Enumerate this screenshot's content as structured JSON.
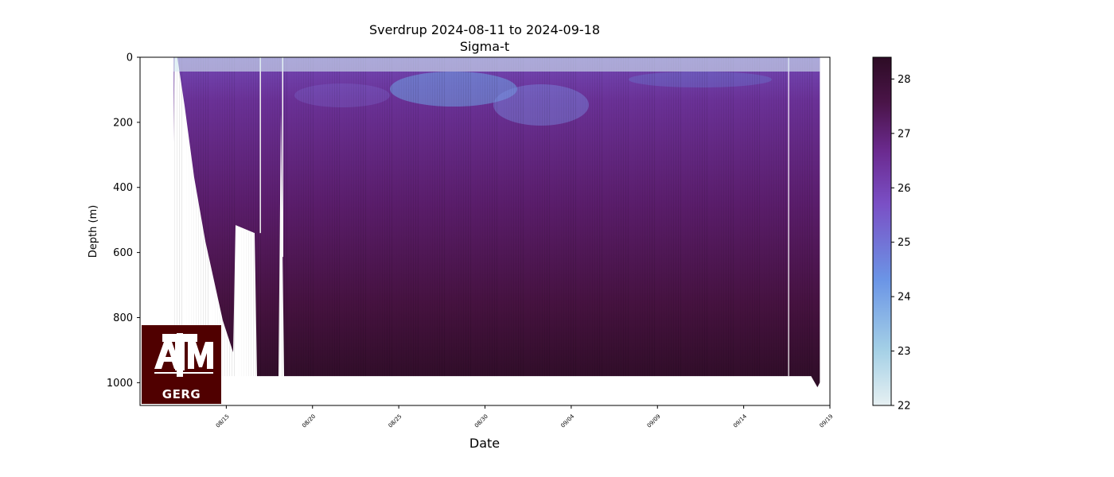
{
  "chart_data": {
    "type": "heatmap",
    "title": "Sverdrup 2024-08-11 to 2024-09-18",
    "subtitle": "Sigma-t",
    "xlabel": "Date",
    "ylabel": "Depth (m)",
    "x_range": [
      "2024-08-10",
      "2024-09-19"
    ],
    "x_ticks": [
      {
        "date": "2024-08-15",
        "label": "08/15"
      },
      {
        "date": "2024-08-20",
        "label": "08/20"
      },
      {
        "date": "2024-08-25",
        "label": "08/25"
      },
      {
        "date": "2024-08-30",
        "label": "08/30"
      },
      {
        "date": "2024-09-04",
        "label": "09/04"
      },
      {
        "date": "2024-09-09",
        "label": "09/09"
      },
      {
        "date": "2024-09-14",
        "label": "09/14"
      },
      {
        "date": "2024-09-19",
        "label": "09/19"
      }
    ],
    "y_range": [
      1070,
      0
    ],
    "y_inverted": true,
    "y_ticks": [
      0,
      200,
      400,
      600,
      800,
      1000
    ],
    "colorbar": {
      "min": 22.0,
      "max": 28.4,
      "ticks": [
        22,
        23,
        24,
        25,
        26,
        27,
        28
      ],
      "colors": [
        "#e6f0f2",
        "#a4d0e6",
        "#6b95e6",
        "#7a4fc5",
        "#6b2a8f",
        "#4a1448",
        "#2d0c25"
      ]
    },
    "data_extent": {
      "start": "2024-08-12",
      "end": "2024-09-18",
      "max_depth": 980,
      "gaps": [
        "2024-08-17",
        "2024-08-18"
      ],
      "surface_layer_depth": 50
    },
    "logo": {
      "text_top": "ATM",
      "text_bottom": "GERG",
      "color": "#500000"
    }
  }
}
